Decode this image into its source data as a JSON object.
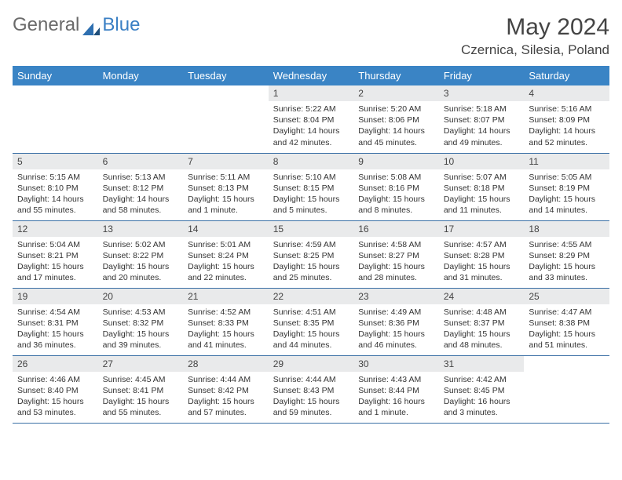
{
  "brand": {
    "part1": "General",
    "part2": "Blue"
  },
  "title": "May 2024",
  "location": "Czernica, Silesia, Poland",
  "colors": {
    "header_bg": "#3a84c5",
    "header_text": "#ffffff",
    "daynum_bg": "#e9eaeb",
    "border": "#3a6fa5",
    "brand_gray": "#6a6a6a",
    "brand_blue": "#3a7fc4"
  },
  "weekdays": [
    "Sunday",
    "Monday",
    "Tuesday",
    "Wednesday",
    "Thursday",
    "Friday",
    "Saturday"
  ],
  "weeks": [
    [
      null,
      null,
      null,
      {
        "n": "1",
        "sr": "5:22 AM",
        "ss": "8:04 PM",
        "dl": "14 hours and 42 minutes."
      },
      {
        "n": "2",
        "sr": "5:20 AM",
        "ss": "8:06 PM",
        "dl": "14 hours and 45 minutes."
      },
      {
        "n": "3",
        "sr": "5:18 AM",
        "ss": "8:07 PM",
        "dl": "14 hours and 49 minutes."
      },
      {
        "n": "4",
        "sr": "5:16 AM",
        "ss": "8:09 PM",
        "dl": "14 hours and 52 minutes."
      }
    ],
    [
      {
        "n": "5",
        "sr": "5:15 AM",
        "ss": "8:10 PM",
        "dl": "14 hours and 55 minutes."
      },
      {
        "n": "6",
        "sr": "5:13 AM",
        "ss": "8:12 PM",
        "dl": "14 hours and 58 minutes."
      },
      {
        "n": "7",
        "sr": "5:11 AM",
        "ss": "8:13 PM",
        "dl": "15 hours and 1 minute."
      },
      {
        "n": "8",
        "sr": "5:10 AM",
        "ss": "8:15 PM",
        "dl": "15 hours and 5 minutes."
      },
      {
        "n": "9",
        "sr": "5:08 AM",
        "ss": "8:16 PM",
        "dl": "15 hours and 8 minutes."
      },
      {
        "n": "10",
        "sr": "5:07 AM",
        "ss": "8:18 PM",
        "dl": "15 hours and 11 minutes."
      },
      {
        "n": "11",
        "sr": "5:05 AM",
        "ss": "8:19 PM",
        "dl": "15 hours and 14 minutes."
      }
    ],
    [
      {
        "n": "12",
        "sr": "5:04 AM",
        "ss": "8:21 PM",
        "dl": "15 hours and 17 minutes."
      },
      {
        "n": "13",
        "sr": "5:02 AM",
        "ss": "8:22 PM",
        "dl": "15 hours and 20 minutes."
      },
      {
        "n": "14",
        "sr": "5:01 AM",
        "ss": "8:24 PM",
        "dl": "15 hours and 22 minutes."
      },
      {
        "n": "15",
        "sr": "4:59 AM",
        "ss": "8:25 PM",
        "dl": "15 hours and 25 minutes."
      },
      {
        "n": "16",
        "sr": "4:58 AM",
        "ss": "8:27 PM",
        "dl": "15 hours and 28 minutes."
      },
      {
        "n": "17",
        "sr": "4:57 AM",
        "ss": "8:28 PM",
        "dl": "15 hours and 31 minutes."
      },
      {
        "n": "18",
        "sr": "4:55 AM",
        "ss": "8:29 PM",
        "dl": "15 hours and 33 minutes."
      }
    ],
    [
      {
        "n": "19",
        "sr": "4:54 AM",
        "ss": "8:31 PM",
        "dl": "15 hours and 36 minutes."
      },
      {
        "n": "20",
        "sr": "4:53 AM",
        "ss": "8:32 PM",
        "dl": "15 hours and 39 minutes."
      },
      {
        "n": "21",
        "sr": "4:52 AM",
        "ss": "8:33 PM",
        "dl": "15 hours and 41 minutes."
      },
      {
        "n": "22",
        "sr": "4:51 AM",
        "ss": "8:35 PM",
        "dl": "15 hours and 44 minutes."
      },
      {
        "n": "23",
        "sr": "4:49 AM",
        "ss": "8:36 PM",
        "dl": "15 hours and 46 minutes."
      },
      {
        "n": "24",
        "sr": "4:48 AM",
        "ss": "8:37 PM",
        "dl": "15 hours and 48 minutes."
      },
      {
        "n": "25",
        "sr": "4:47 AM",
        "ss": "8:38 PM",
        "dl": "15 hours and 51 minutes."
      }
    ],
    [
      {
        "n": "26",
        "sr": "4:46 AM",
        "ss": "8:40 PM",
        "dl": "15 hours and 53 minutes."
      },
      {
        "n": "27",
        "sr": "4:45 AM",
        "ss": "8:41 PM",
        "dl": "15 hours and 55 minutes."
      },
      {
        "n": "28",
        "sr": "4:44 AM",
        "ss": "8:42 PM",
        "dl": "15 hours and 57 minutes."
      },
      {
        "n": "29",
        "sr": "4:44 AM",
        "ss": "8:43 PM",
        "dl": "15 hours and 59 minutes."
      },
      {
        "n": "30",
        "sr": "4:43 AM",
        "ss": "8:44 PM",
        "dl": "16 hours and 1 minute."
      },
      {
        "n": "31",
        "sr": "4:42 AM",
        "ss": "8:45 PM",
        "dl": "16 hours and 3 minutes."
      },
      null
    ]
  ],
  "labels": {
    "sunrise": "Sunrise:",
    "sunset": "Sunset:",
    "daylight": "Daylight:"
  }
}
